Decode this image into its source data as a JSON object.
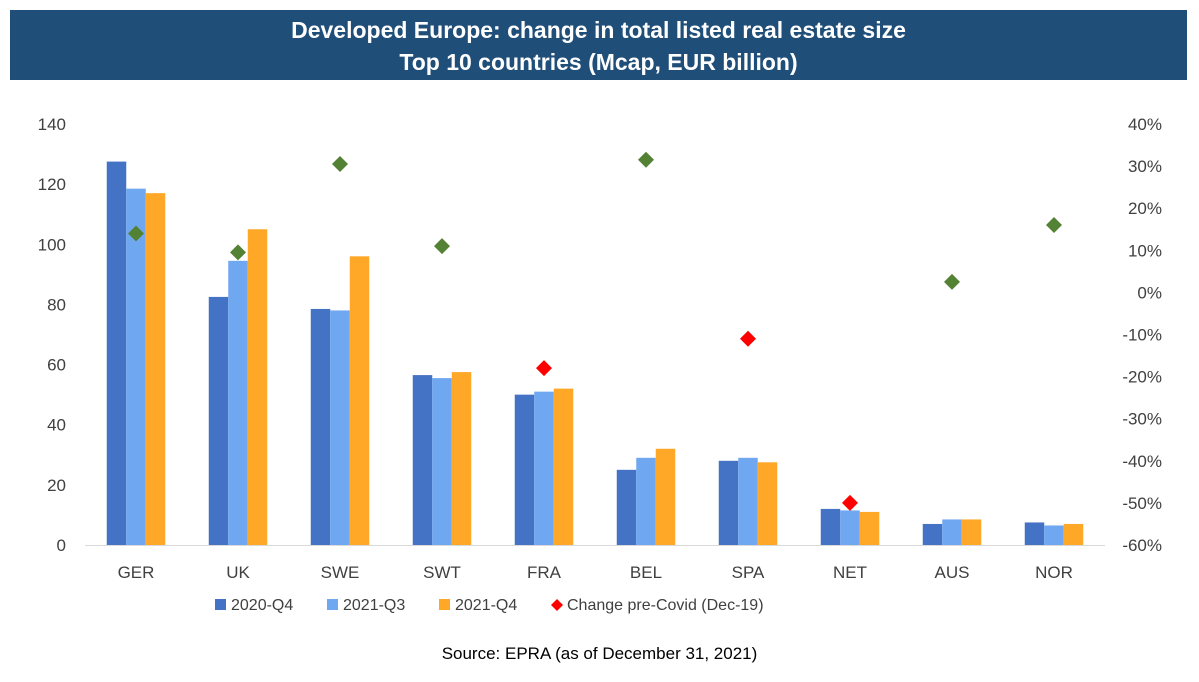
{
  "title_line1": "Developed Europe: change in total listed real estate size",
  "title_line2": "Top 10 countries (Mcap, EUR billion)",
  "source": "Source: EPRA (as of December 31, 2021)",
  "chart_data": {
    "type": "bar",
    "categories": [
      "GER",
      "UK",
      "SWE",
      "SWT",
      "FRA",
      "BEL",
      "SPA",
      "NET",
      "AUS",
      "NOR"
    ],
    "series": [
      {
        "name": "2020-Q4",
        "color": "#4472c4",
        "values": [
          127.5,
          82.5,
          78.5,
          56.5,
          50,
          25,
          28,
          12,
          7,
          7.5
        ]
      },
      {
        "name": "2021-Q3",
        "color": "#6fa8f0",
        "values": [
          118.5,
          94.5,
          78,
          55.5,
          51,
          29,
          29,
          11.5,
          8.5,
          6.5
        ]
      },
      {
        "name": "2021-Q4",
        "color": "#ffa726",
        "values": [
          117,
          105,
          96,
          57.5,
          52,
          32,
          27.5,
          11,
          8.5,
          7
        ]
      }
    ],
    "scatter_series": {
      "name": "Change pre-Covid (Dec-19)",
      "legend_color": "#ff0000",
      "positive_color": "#548235",
      "negative_color": "#ff0000",
      "values": [
        14,
        9.5,
        30.5,
        11,
        -18,
        31.5,
        -11,
        -50,
        2.5,
        16
      ]
    },
    "y_left": {
      "min": 0,
      "max": 140,
      "ticks": [
        "0",
        "20",
        "40",
        "60",
        "80",
        "100",
        "120",
        "140"
      ]
    },
    "y_right": {
      "min": -60,
      "max": 40,
      "ticks": [
        "-60%",
        "-50%",
        "-40%",
        "-30%",
        "-20%",
        "-10%",
        "0%",
        "10%",
        "20%",
        "30%",
        "40%"
      ]
    },
    "grid": false,
    "legend_position": "bottom"
  }
}
